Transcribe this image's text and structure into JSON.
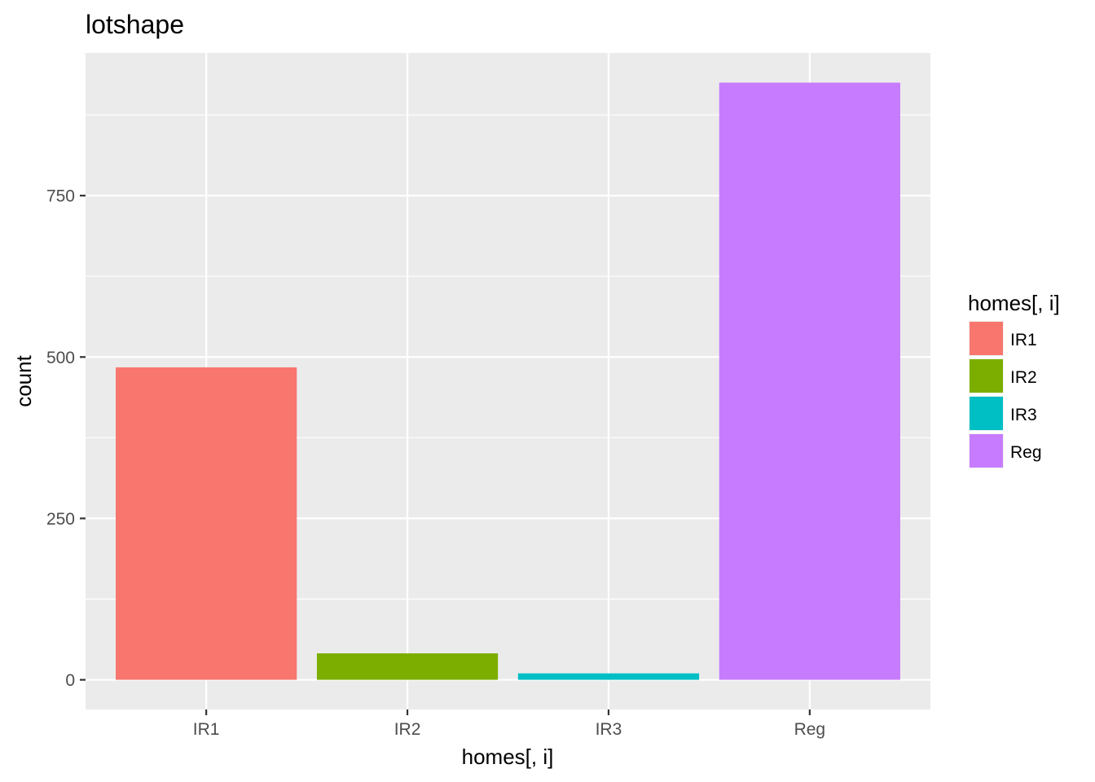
{
  "chart_data": {
    "type": "bar",
    "title": "lotshape",
    "xlabel": "homes[, i]",
    "ylabel": "count",
    "categories": [
      "IR1",
      "IR2",
      "IR3",
      "Reg"
    ],
    "values": [
      484,
      41,
      10,
      925
    ],
    "colors": [
      "#F8766D",
      "#7CAE00",
      "#00BFC4",
      "#C77CFF"
    ],
    "ylim": [
      -46,
      971
    ],
    "yticks": [
      0,
      250,
      500,
      750
    ],
    "yticks_minor": [
      125,
      375,
      625,
      875
    ],
    "ytick_labels": [
      "0",
      "250",
      "500",
      "750"
    ],
    "grid": true,
    "legend": {
      "title": "homes[, i]",
      "position": "right",
      "entries": [
        "IR1",
        "IR2",
        "IR3",
        "Reg"
      ]
    },
    "panel_background": "#EBEBEB",
    "grid_color": "#FFFFFF"
  }
}
